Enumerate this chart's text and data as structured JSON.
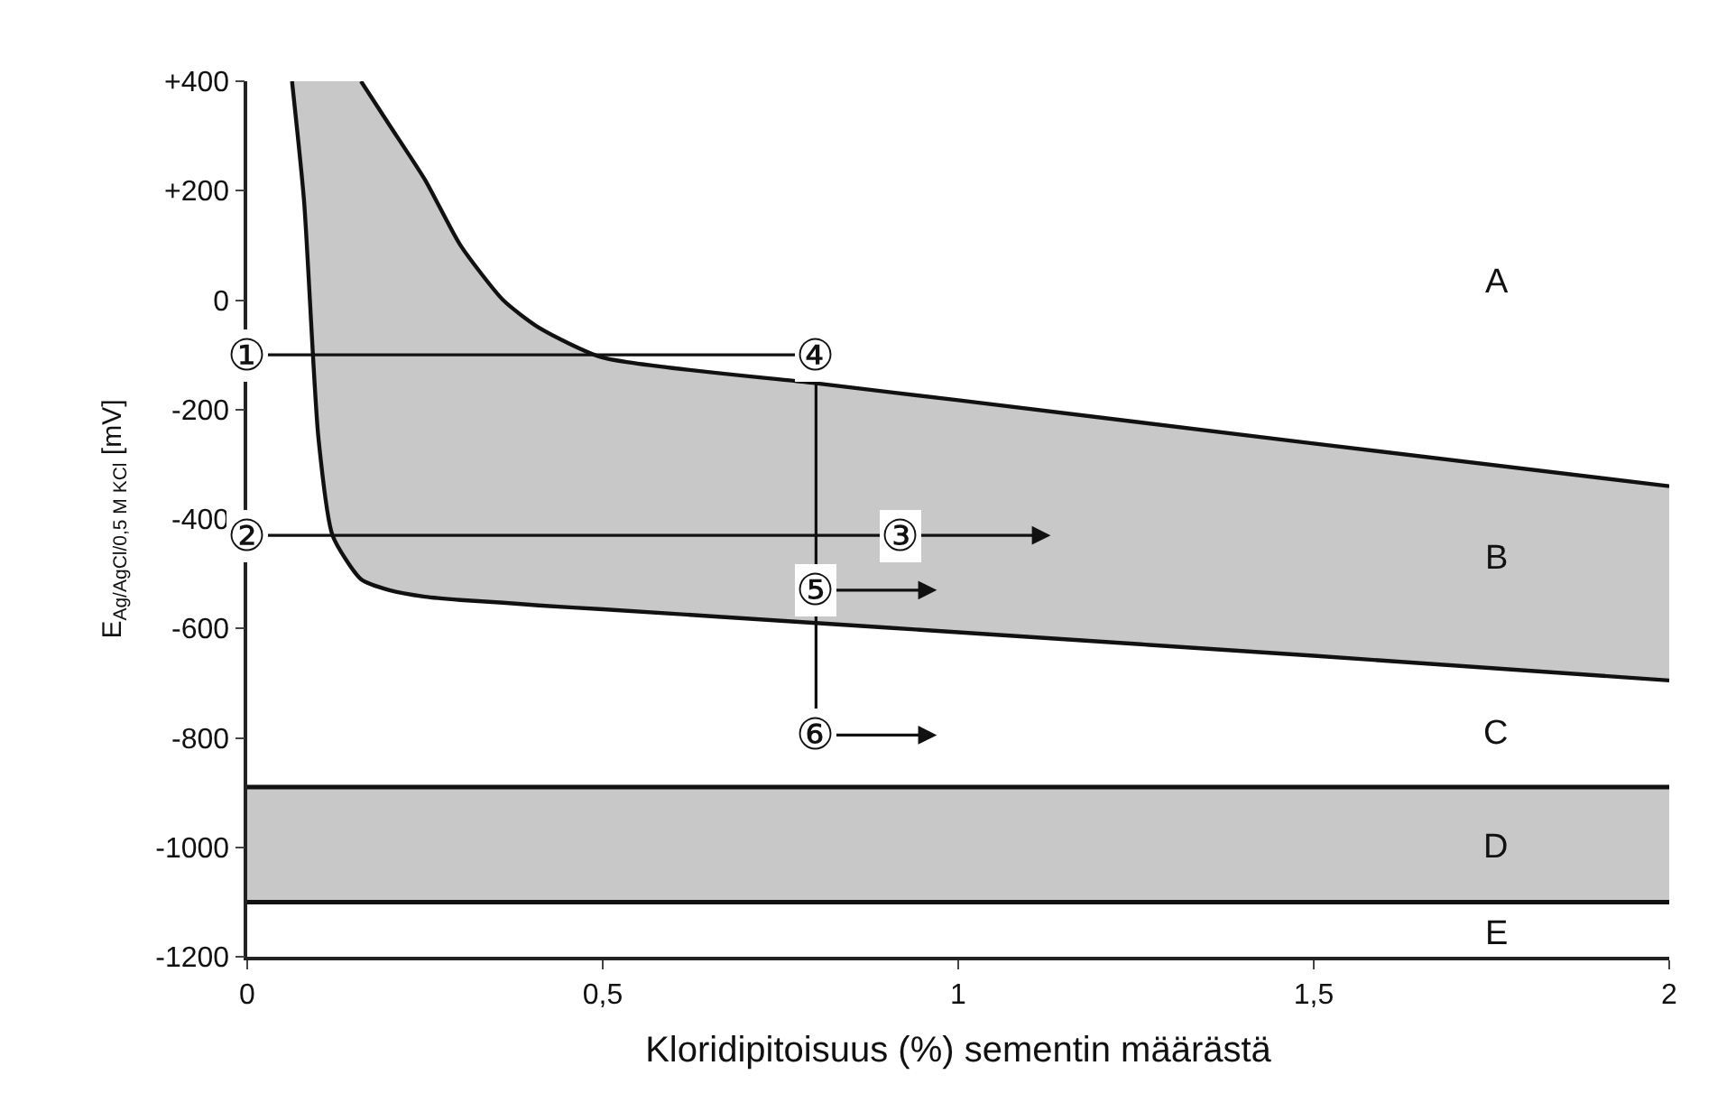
{
  "chart_data": {
    "type": "line",
    "xlabel": "Kloridipitoisuus (%) sementin määrästä",
    "ylabel": "E$_{Ag/AgCl/0,5 M KCl}$ [mV]",
    "xlim": [
      0,
      2
    ],
    "ylim": [
      -1200,
      400
    ],
    "xticks": [
      0,
      {
        "value": 0.5,
        "label": "0,5"
      },
      1,
      {
        "value": 1.5,
        "label": "1,5"
      },
      2
    ],
    "yticks": [
      {
        "value": 400,
        "label": "+400"
      },
      {
        "value": 200,
        "label": "+200"
      },
      0,
      -200,
      -400,
      -600,
      -800,
      -1000,
      -1200
    ],
    "grid": false,
    "series": [
      {
        "color": "#111111",
        "x": [
          0.063,
          0.08,
          0.1,
          0.12,
          0.16,
          0.2,
          0.25,
          0.3,
          0.36,
          0.41,
          0.5,
          0.8,
          1.0,
          1.5,
          2
        ],
        "values": [
          null,
          null,
          null,
          null,
          400,
          320,
          220,
          100,
          0,
          -50,
          -105,
          -152,
          -183,
          -262,
          -340
        ],
        "lower": [
          400,
          180,
          -250,
          -430,
          -510,
          -530,
          -542,
          -548,
          -553,
          -558,
          -565,
          -590,
          -607,
          -650,
          -695
        ],
        "upper": [
          400,
          400,
          400,
          400,
          400,
          320,
          220,
          100,
          0,
          -50,
          -105,
          -152,
          -183,
          -262,
          -340
        ]
      },
      {
        "color": "#111111",
        "x": [
          0.063,
          0.08,
          0.1,
          0.12,
          0.16,
          0.2,
          0.25,
          0.3,
          0.36,
          0.41,
          0.5,
          0.8,
          1.0,
          1.5,
          2
        ],
        "values": [
          400,
          180,
          -250,
          -430,
          -510,
          -530,
          -542,
          -548,
          -553,
          -558,
          -565,
          -590,
          -607,
          -650,
          -695
        ]
      }
    ],
    "bands": [
      {
        "axis": "y",
        "from": -1100,
        "to": -890,
        "color": "#c8c8c8"
      }
    ],
    "ref_lines": [
      {
        "axis": "y",
        "value": -890,
        "color": "#111111"
      },
      {
        "axis": "y",
        "value": -1100,
        "color": "#111111"
      }
    ],
    "annotations": [
      {
        "text": "①",
        "x": 0,
        "y": -100
      },
      {
        "text": "④",
        "x": 0.8,
        "y": -100
      },
      {
        "text": "②",
        "x": 0,
        "y": -430
      },
      {
        "text": "③",
        "x": 0.92,
        "y": -430
      },
      {
        "text": "⑤",
        "x": 0.8,
        "y": -530
      },
      {
        "text": "⑥",
        "x": 0.8,
        "y": -795
      },
      "A",
      "B",
      "C",
      "D",
      "E"
    ]
  }
}
